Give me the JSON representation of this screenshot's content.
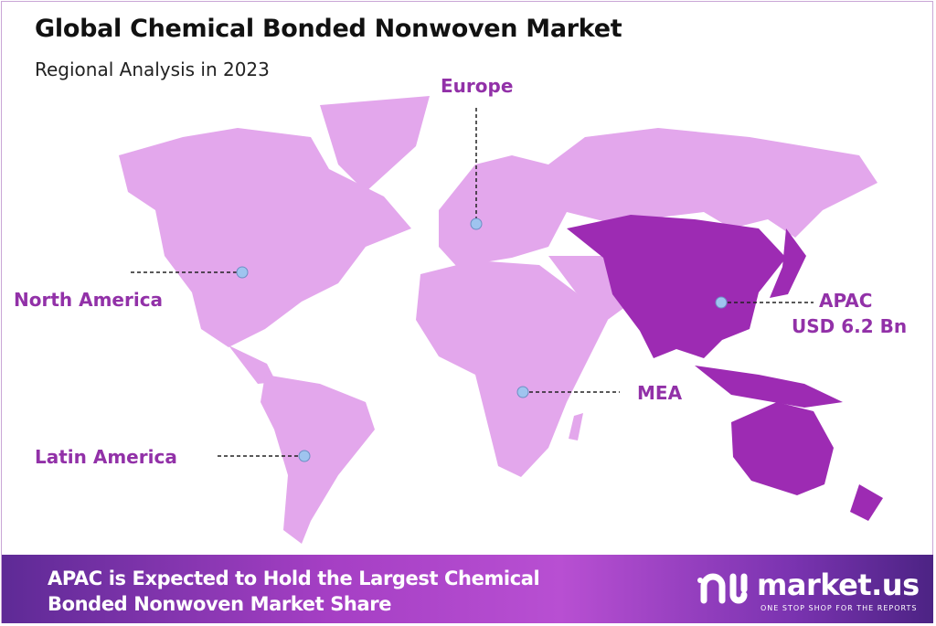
{
  "header": {
    "title": "Global Chemical Bonded Nonwoven Market",
    "subtitle": "Regional Analysis in 2023"
  },
  "colors": {
    "land": "#e3a7ec",
    "highlight": "#9d2bb3",
    "label": "#9231a8",
    "marker": "#9fc4ef"
  },
  "regions": [
    {
      "name": "Europe"
    },
    {
      "name": "North America"
    },
    {
      "name": "APAC",
      "value": "USD 6.2 Bn",
      "highlighted": true
    },
    {
      "name": "MEA"
    },
    {
      "name": "Latin America"
    }
  ],
  "footer": {
    "text_line1": "APAC is Expected to Hold the Largest Chemical",
    "text_line2": "Bonded Nonwoven Market Share",
    "logo_name": "market.us",
    "logo_tagline": "ONE STOP SHOP FOR THE REPORTS"
  }
}
